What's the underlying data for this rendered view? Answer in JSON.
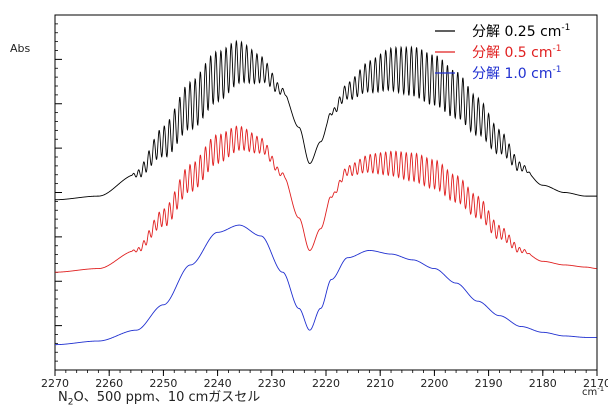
{
  "chart_data": {
    "type": "line",
    "ylabel": "Abs",
    "x_unit": "cm",
    "x_unit_exp": "-1",
    "xlim": [
      2270,
      2170
    ],
    "x_ticks": [
      "2270",
      "2260",
      "2250",
      "2240",
      "2230",
      "2220",
      "2210",
      "2200",
      "2190",
      "2180",
      "2170"
    ],
    "grid": false,
    "legend_position": "top-right",
    "series": [
      {
        "name": "分解 0.25 cm-1",
        "legend_text": "分解 0.25 cm",
        "legend_sup": "-1",
        "color": "#000000",
        "rot_amp": 0.35,
        "rot_period": 0.95,
        "x": [
          2270,
          2262,
          2255,
          2250,
          2245,
          2240,
          2236,
          2232,
          2228,
          2225,
          2223,
          2221,
          2219,
          2216,
          2212,
          2208,
          2204,
          2200,
          2196,
          2192,
          2188,
          2184,
          2180,
          2176,
          2172,
          2170
        ],
        "y": [
          1.05,
          1.1,
          1.4,
          1.85,
          2.35,
          2.75,
          2.95,
          2.85,
          2.55,
          2.05,
          1.55,
          1.85,
          2.25,
          2.55,
          2.75,
          2.85,
          2.82,
          2.7,
          2.5,
          2.2,
          1.85,
          1.5,
          1.25,
          1.15,
          1.1,
          1.1
        ]
      },
      {
        "name": "分解 0.5 cm-1",
        "legend_text": "分解 0.5 cm",
        "legend_sup": "-1",
        "color": "#e02020",
        "rot_amp": 0.2,
        "rot_period": 0.95,
        "x": [
          2270,
          2262,
          2255,
          2250,
          2245,
          2240,
          2236,
          2232,
          2228,
          2225,
          2223,
          2221,
          2219,
          2216,
          2212,
          2208,
          2204,
          2200,
          2196,
          2192,
          2188,
          2184,
          2180,
          2176,
          2172,
          2170
        ],
        "y": [
          0.05,
          0.1,
          0.35,
          0.8,
          1.35,
          1.75,
          1.9,
          1.8,
          1.4,
          0.8,
          0.35,
          0.65,
          1.1,
          1.45,
          1.55,
          1.55,
          1.5,
          1.4,
          1.2,
          0.95,
          0.6,
          0.35,
          0.2,
          0.15,
          0.12,
          0.1
        ]
      },
      {
        "name": "分解 1.0 cm-1",
        "legend_text": "分解 1.0 cm",
        "legend_sup": "-1",
        "color": "#2030d0",
        "rot_amp": 0.0,
        "rot_period": 0.95,
        "x": [
          2270,
          2262,
          2255,
          2250,
          2245,
          2240,
          2236,
          2232,
          2228,
          2225,
          2223,
          2221,
          2219,
          2216,
          2212,
          2208,
          2204,
          2200,
          2196,
          2192,
          2188,
          2184,
          2180,
          2176,
          2172,
          2170
        ],
        "y": [
          -0.95,
          -0.9,
          -0.75,
          -0.4,
          0.15,
          0.6,
          0.7,
          0.55,
          0.05,
          -0.45,
          -0.75,
          -0.45,
          -0.05,
          0.25,
          0.35,
          0.3,
          0.22,
          0.1,
          -0.1,
          -0.35,
          -0.55,
          -0.7,
          -0.78,
          -0.83,
          -0.85,
          -0.85
        ]
      }
    ],
    "caption": {
      "prefix": "N",
      "sub": "2",
      "suffix": "O、500 ppm、10 cmガスセル"
    }
  }
}
